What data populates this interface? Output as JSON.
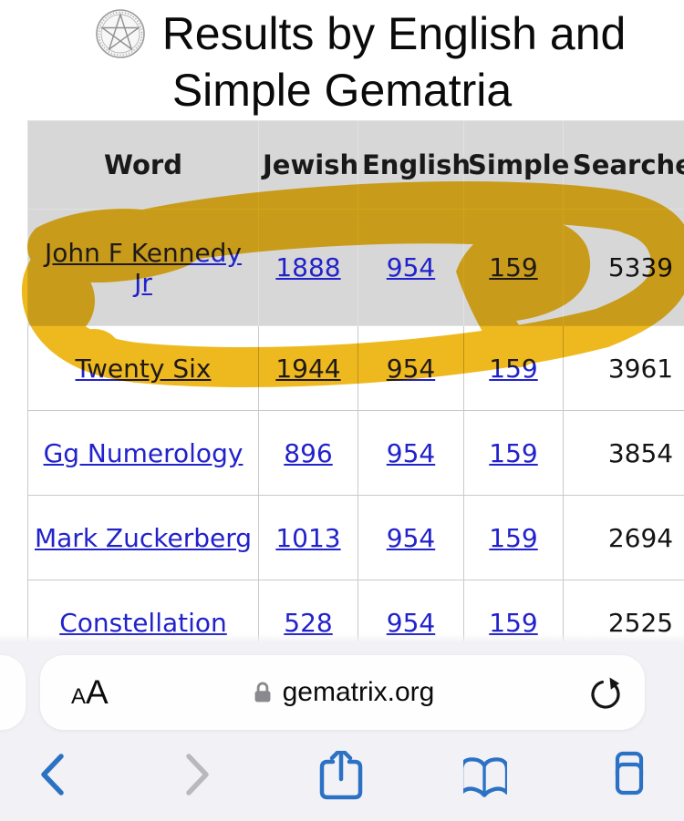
{
  "page": {
    "title_lines": [
      "Results by English and",
      "Simple Gematria"
    ],
    "logo_icon": "pentagram-circle-logo"
  },
  "table": {
    "headers": [
      "Word",
      "Jewish",
      "English",
      "Simple",
      "Searches"
    ],
    "rows": [
      {
        "word": "John F Kennedy Jr",
        "jewish": "1888",
        "english": "954",
        "simple": "159",
        "searches": "5339",
        "exact_match": true
      },
      {
        "word": "Twenty Six",
        "jewish": "1944",
        "english": "954",
        "simple": "159",
        "searches": "3961",
        "exact_match": false
      },
      {
        "word": "Gg Numerology",
        "jewish": "896",
        "english": "954",
        "simple": "159",
        "searches": "3854",
        "exact_match": false
      },
      {
        "word": "Mark Zuckerberg",
        "jewish": "1013",
        "english": "954",
        "simple": "159",
        "searches": "2694",
        "exact_match": false
      },
      {
        "word": "Constellation",
        "jewish": "528",
        "english": "954",
        "simple": "159",
        "searches": "2525",
        "exact_match": false
      }
    ]
  },
  "annotation": {
    "type": "hand-drawn-highlighter-oval",
    "encircles": "John F Kennedy Jr row",
    "blob_over": "159"
  },
  "browser": {
    "reader_label": "AA",
    "url": "gematrix.org",
    "lock_icon": "lock-icon",
    "reload_icon": "reload-icon",
    "toolbar_icons": [
      "back-chevron",
      "forward-chevron",
      "share",
      "bookmarks",
      "tabs"
    ]
  },
  "colors": {
    "marker": "#eeb91e",
    "link_blue": "#2222cc",
    "toolbar_blue": "#2b72c5",
    "disabled_gray": "#b9b9bd",
    "chrome_bg": "#f2f1f6",
    "gray_row": "#d7d7d7",
    "text_black": "#111111",
    "lock_gray": "#8a8a8e"
  }
}
